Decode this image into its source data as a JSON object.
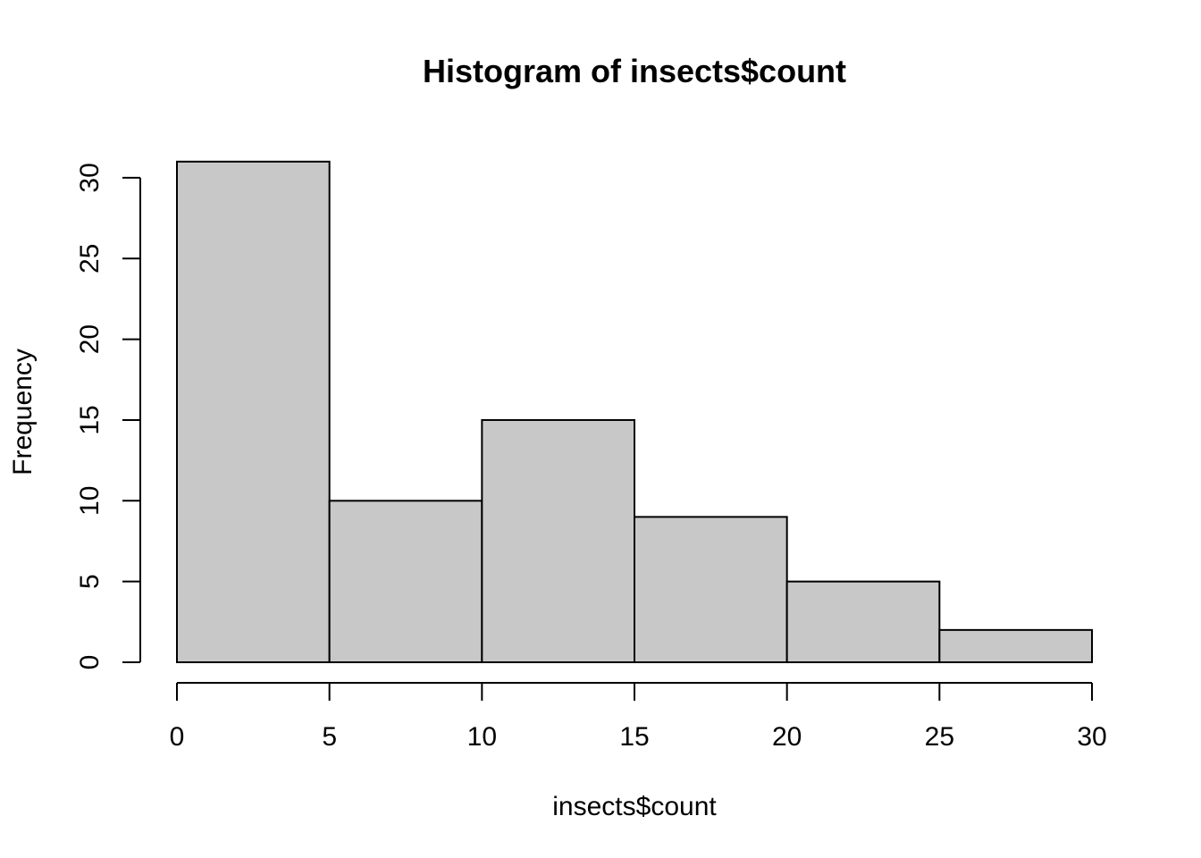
{
  "chart_data": {
    "type": "bar",
    "subtype": "histogram",
    "title": "Histogram of insects$count",
    "xlabel": "insects$count",
    "ylabel": "Frequency",
    "bins": [
      {
        "start": 0,
        "end": 5,
        "count": 31
      },
      {
        "start": 5,
        "end": 10,
        "count": 10
      },
      {
        "start": 10,
        "end": 15,
        "count": 15
      },
      {
        "start": 15,
        "end": 20,
        "count": 9
      },
      {
        "start": 20,
        "end": 25,
        "count": 5
      },
      {
        "start": 25,
        "end": 30,
        "count": 2
      }
    ],
    "xlim": [
      0,
      30
    ],
    "ylim": [
      0,
      31
    ],
    "xticks": [
      0,
      5,
      10,
      15,
      20,
      25,
      30
    ],
    "yticks": [
      0,
      5,
      10,
      15,
      20,
      25,
      30
    ],
    "bar_fill": "#c8c8c8",
    "grid": false
  }
}
